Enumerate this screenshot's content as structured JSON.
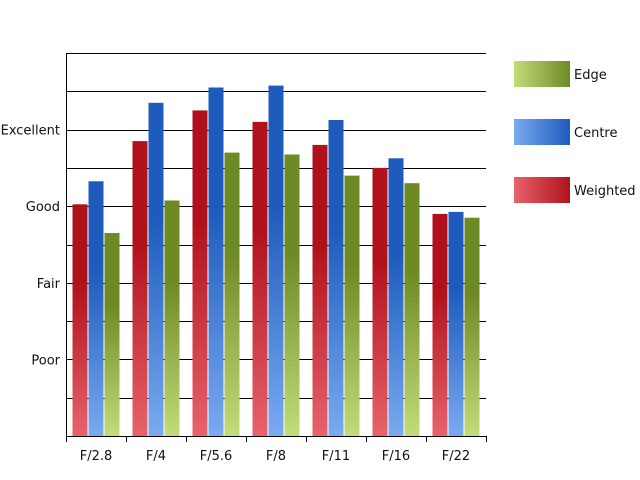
{
  "chart_data": {
    "type": "bar",
    "categories": [
      "F/2.8",
      "F/4",
      "F/5.6",
      "F/8",
      "F/11",
      "F/16",
      "F/22"
    ],
    "y_scale": {
      "min": 0,
      "max": 10,
      "gridline_step": 1
    },
    "y_tick_labels": [
      {
        "label": "Poor",
        "value": 2
      },
      {
        "label": "Fair",
        "value": 4
      },
      {
        "label": "Good",
        "value": 6
      },
      {
        "label": "Excellent",
        "value": 8
      }
    ],
    "series": [
      {
        "name": "Weighted",
        "colors": {
          "light": "#e8636c",
          "dark": "#b0121c"
        },
        "values": [
          6.05,
          7.7,
          8.5,
          8.2,
          7.6,
          7.0,
          5.8
        ]
      },
      {
        "name": "Centre",
        "colors": {
          "light": "#7aaaf0",
          "dark": "#1e5bbd"
        },
        "values": [
          6.65,
          8.7,
          9.1,
          9.15,
          8.25,
          7.25,
          5.85
        ]
      },
      {
        "name": "Edge",
        "colors": {
          "light": "#c2dc7a",
          "dark": "#6e8a24"
        },
        "values": [
          5.3,
          6.15,
          7.4,
          7.35,
          6.8,
          6.6,
          5.7
        ]
      }
    ],
    "legend_order": [
      "Edge",
      "Centre",
      "Weighted"
    ],
    "legend_position": "right",
    "grid": true,
    "title": "",
    "xlabel": "",
    "ylabel": ""
  }
}
